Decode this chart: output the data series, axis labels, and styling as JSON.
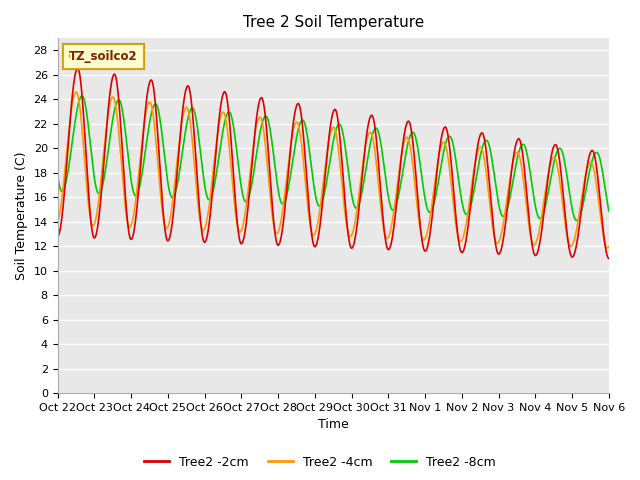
{
  "title": "Tree 2 Soil Temperature",
  "xlabel": "Time",
  "ylabel": "Soil Temperature (C)",
  "ylim": [
    0,
    29
  ],
  "yticks": [
    0,
    2,
    4,
    6,
    8,
    10,
    12,
    14,
    16,
    18,
    20,
    22,
    24,
    26,
    28
  ],
  "legend_label": "TZ_soilco2",
  "series_labels": [
    "Tree2 -2cm",
    "Tree2 -4cm",
    "Tree2 -8cm"
  ],
  "series_colors": [
    "#dd0000",
    "#ff9900",
    "#00cc00"
  ],
  "xtick_labels": [
    "Oct 22",
    "Oct 23",
    "Oct 24",
    "Oct 25",
    "Oct 26",
    "Oct 27",
    "Oct 28",
    "Oct 29",
    "Oct 30",
    "Oct 31",
    "Nov 1",
    "Nov 2",
    "Nov 3",
    "Nov 4",
    "Nov 5",
    "Nov 6"
  ],
  "background_color": "#e0e0e0",
  "plot_bg_color": "#e8e8e8",
  "grid_color": "#ffffff",
  "title_fontsize": 11,
  "axis_label_fontsize": 9,
  "tick_fontsize": 8
}
